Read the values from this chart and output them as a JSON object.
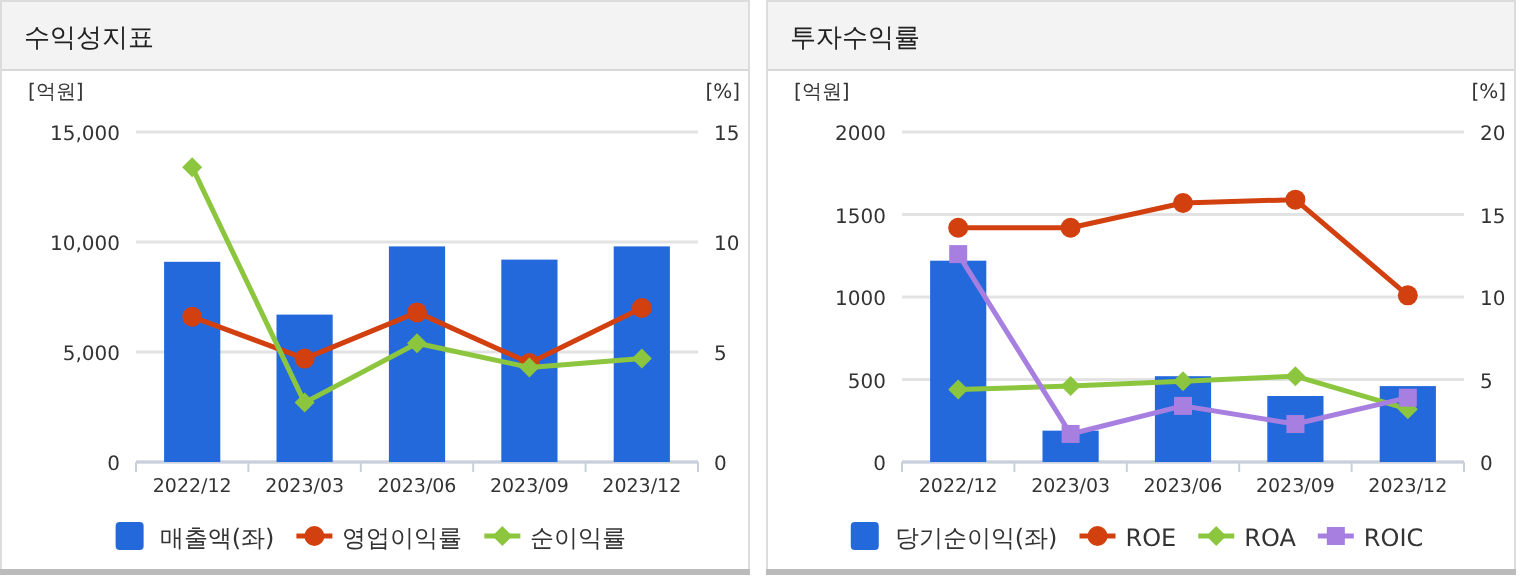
{
  "chart_data": [
    {
      "type": "bar",
      "title": "수익성지표",
      "ylabel": "[억원]",
      "y2label": "[%]",
      "categories": [
        "2022/12",
        "2023/03",
        "2023/06",
        "2023/09",
        "2023/12"
      ],
      "series": [
        {
          "name": "매출액(좌)",
          "color": "#2369dc",
          "values": [
            9100,
            6700,
            9800,
            9200,
            9800
          ]
        },
        {
          "name": "영업이익률",
          "type": "line",
          "axis": "y2",
          "marker": "circle",
          "color": "#d2400f",
          "values": [
            6.6,
            4.7,
            6.8,
            4.5,
            7.0
          ]
        },
        {
          "name": "순이익률",
          "type": "line",
          "axis": "y2",
          "marker": "diamond",
          "color": "#8cc63f",
          "values": [
            13.4,
            2.7,
            5.4,
            4.3,
            4.7
          ]
        }
      ],
      "ylim": [
        0,
        15000
      ],
      "yticks": [
        0,
        {
          "value": 5000,
          "label": "5,000"
        },
        {
          "value": 10000,
          "label": "10,000"
        },
        {
          "value": 15000,
          "label": "15,000"
        }
      ],
      "y2lim": [
        0,
        15
      ],
      "y2ticks": [
        0,
        5,
        10,
        15
      ],
      "grid": "y",
      "legend": "bottom"
    },
    {
      "type": "bar",
      "title": "투자수익률",
      "ylabel": "[억원]",
      "y2label": "[%]",
      "categories": [
        "2022/12",
        "2023/03",
        "2023/06",
        "2023/09",
        "2023/12"
      ],
      "series": [
        {
          "name": "당기순이익(좌)",
          "color": "#2369dc",
          "values": [
            1220,
            190,
            520,
            400,
            460
          ]
        },
        {
          "name": "ROE",
          "type": "line",
          "axis": "y2",
          "marker": "circle",
          "color": "#d2400f",
          "values": [
            14.2,
            14.2,
            15.7,
            15.9,
            10.1
          ]
        },
        {
          "name": "ROA",
          "type": "line",
          "axis": "y2",
          "marker": "diamond",
          "color": "#8cc63f",
          "values": [
            4.4,
            4.6,
            4.9,
            5.2,
            3.2
          ]
        },
        {
          "name": "ROIC",
          "type": "line",
          "axis": "y2",
          "marker": "square",
          "color": "#a77fe0",
          "values": [
            12.6,
            1.7,
            3.4,
            2.3,
            3.9
          ]
        }
      ],
      "ylim": [
        0,
        2000
      ],
      "yticks": [
        0,
        500,
        1000,
        1500,
        2000
      ],
      "y2lim": [
        0,
        20
      ],
      "y2ticks": [
        0,
        5,
        10,
        15,
        20
      ],
      "grid": "y",
      "legend": "bottom"
    }
  ]
}
